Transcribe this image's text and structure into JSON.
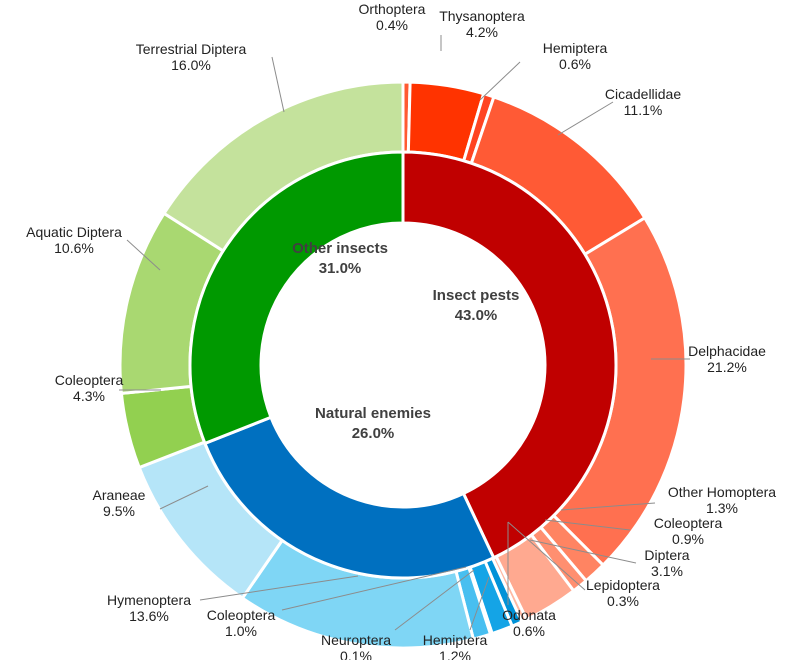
{
  "chart_data": {
    "type": "pie",
    "subtype": "donut-sunburst",
    "rings": {
      "inner": [
        {
          "name": "Insect pests",
          "value": 43.0,
          "label": "43.0%",
          "color": "#c00000"
        },
        {
          "name": "Natural enemies",
          "value": 26.0,
          "label": "26.0%",
          "color": "#0070c0"
        },
        {
          "name": "Other insects",
          "value": 31.0,
          "label": "31.0%",
          "color": "#009900"
        }
      ],
      "outer": [
        {
          "group": "Insect pests",
          "name": "Orthoptera",
          "value": 0.4,
          "label": "0.4%",
          "color": "#ff5a32"
        },
        {
          "group": "Insect pests",
          "name": "Thysanoptera",
          "value": 4.2,
          "label": "4.2%",
          "color": "#ff3300"
        },
        {
          "group": "Insect pests",
          "name": "Hemiptera",
          "value": 0.6,
          "label": "0.6%",
          "color": "#ff4422"
        },
        {
          "group": "Insect pests",
          "name": "Cicadellidae",
          "value": 11.1,
          "label": "11.1%",
          "color": "#ff5a35"
        },
        {
          "group": "Insect pests",
          "name": "Delphacidae",
          "value": 21.2,
          "label": "21.2%",
          "color": "#ff7050"
        },
        {
          "group": "Insect pests",
          "name": "Other Homoptera",
          "value": 1.3,
          "label": "1.3%",
          "color": "#ff8462"
        },
        {
          "group": "Insect pests",
          "name": "Coleoptera",
          "value": 0.9,
          "label": "0.9%",
          "color": "#ff8f70"
        },
        {
          "group": "Insect pests",
          "name": "Diptera",
          "value": 3.1,
          "label": "3.1%",
          "color": "#ffa990"
        },
        {
          "group": "Insect pests",
          "name": "Lepidoptera",
          "value": 0.3,
          "label": "0.3%",
          "color": "#ffb8a2"
        },
        {
          "group": "Natural enemies",
          "name": "Odonata",
          "value": 0.6,
          "label": "0.6%",
          "color": "#0092d8"
        },
        {
          "group": "Natural enemies",
          "name": "Hemiptera",
          "value": 1.2,
          "label": "1.2%",
          "color": "#14a4e6"
        },
        {
          "group": "Natural enemies",
          "name": "Neuroptera",
          "value": 0.1,
          "label": "0.1%",
          "color": "#2fb0ec"
        },
        {
          "group": "Natural enemies",
          "name": "Coleoptera",
          "value": 1.0,
          "label": "1.0%",
          "color": "#48bff0"
        },
        {
          "group": "Natural enemies",
          "name": "Hymenoptera",
          "value": 13.6,
          "label": "13.6%",
          "color": "#7fd6f5"
        },
        {
          "group": "Natural enemies",
          "name": "Araneae",
          "value": 9.5,
          "label": "9.5%",
          "color": "#b5e5f8"
        },
        {
          "group": "Other insects",
          "name": "Coleoptera",
          "value": 4.3,
          "label": "4.3%",
          "color": "#92d050"
        },
        {
          "group": "Other insects",
          "name": "Aquatic Diptera",
          "value": 10.6,
          "label": "10.6%",
          "color": "#a9d871"
        },
        {
          "group": "Other insects",
          "name": "Terrestrial Diptera",
          "value": 16.0,
          "label": "16.0%",
          "color": "#c4e29c"
        }
      ]
    },
    "start": "top",
    "direction": "clockwise"
  }
}
